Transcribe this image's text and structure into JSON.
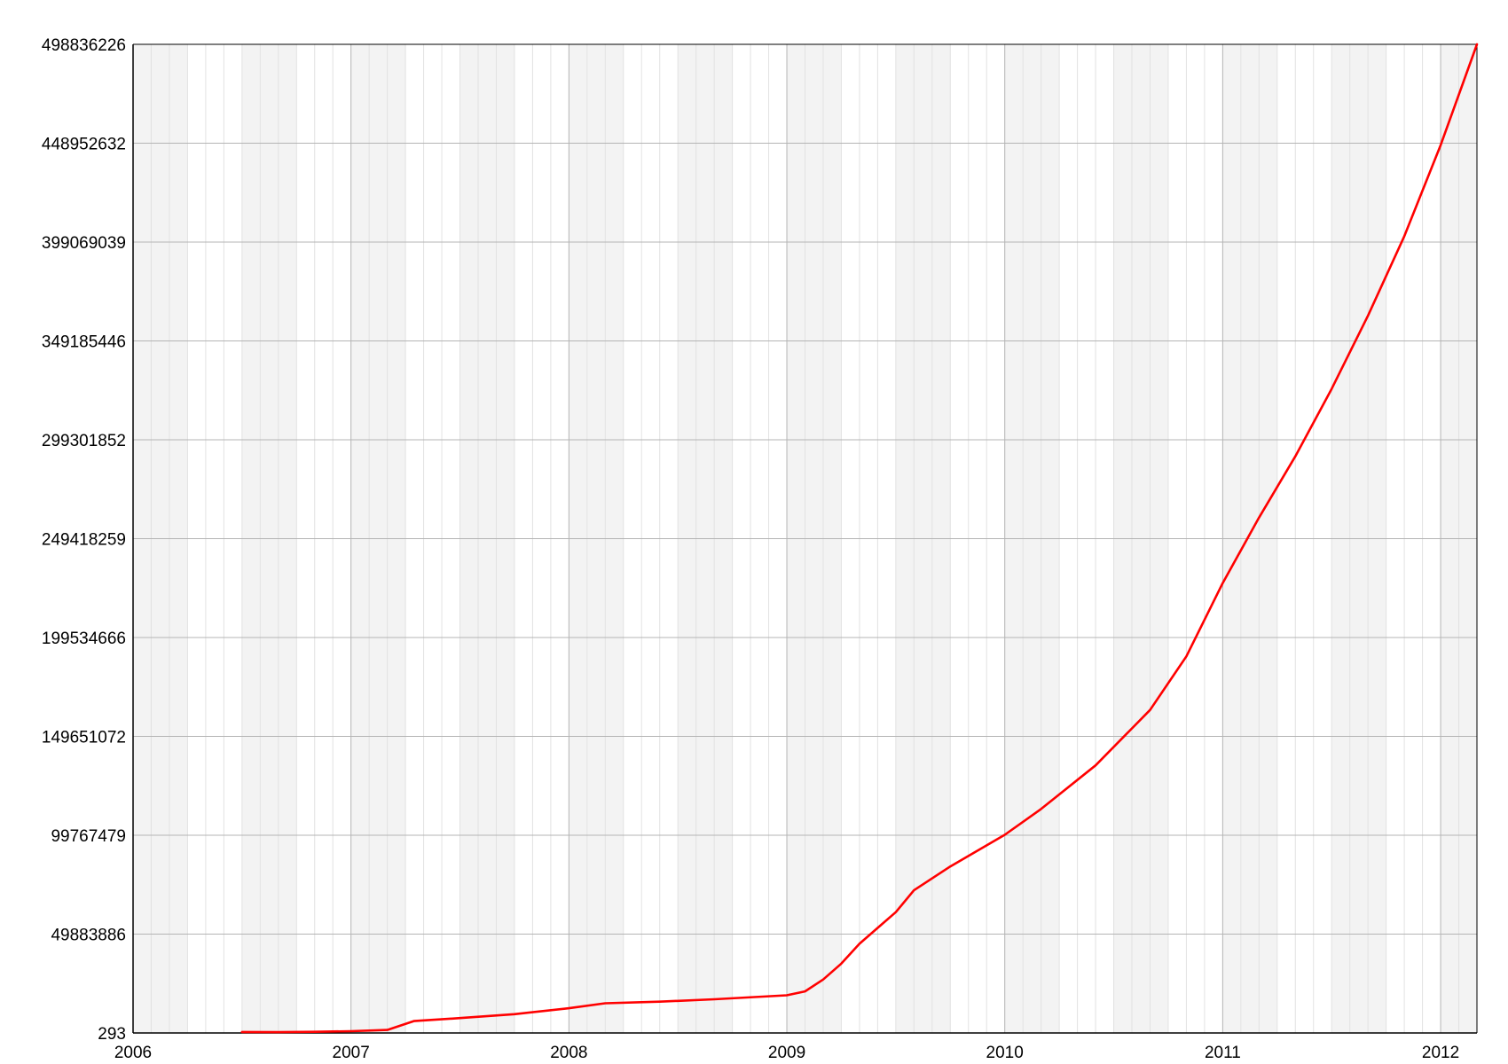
{
  "chart_data": {
    "type": "line",
    "title": "",
    "xlabel": "",
    "ylabel": "",
    "x_ticks": [
      "2006",
      "2007",
      "2008",
      "2009",
      "2010",
      "2011",
      "2012"
    ],
    "y_ticks": [
      "293",
      "49883886",
      "99767479",
      "149651072",
      "199534666",
      "249418259",
      "299301852",
      "349185446",
      "399069039",
      "448952632",
      "498836226"
    ],
    "xlim": [
      "2006-01-01",
      "2012-03-01"
    ],
    "ylim": [
      293,
      498836226
    ],
    "grid": true,
    "legend": "none",
    "colors": {
      "line": "#ff0000",
      "band": "#f3f3f3",
      "grid_major": "#b4b4b4",
      "grid_minor": "#e2e2e2",
      "axis": "#000000"
    },
    "series": [
      {
        "name": "",
        "x": [
          "2006-07-01",
          "2006-09-01",
          "2006-11-01",
          "2007-01-01",
          "2007-03-01",
          "2007-04-15",
          "2007-07-01",
          "2007-10-01",
          "2008-01-01",
          "2008-03-01",
          "2008-06-01",
          "2008-09-01",
          "2009-01-01",
          "2009-02-01",
          "2009-03-01",
          "2009-04-01",
          "2009-05-01",
          "2009-06-01",
          "2009-07-01",
          "2009-08-01",
          "2009-10-01",
          "2010-01-01",
          "2010-03-01",
          "2010-06-01",
          "2010-09-01",
          "2010-11-01",
          "2011-01-01",
          "2011-03-01",
          "2011-05-01",
          "2011-07-01",
          "2011-09-01",
          "2011-11-01",
          "2012-01-01",
          "2012-03-01"
        ],
        "y": [
          500000,
          400000,
          600000,
          900000,
          1500000,
          6000000,
          7500000,
          9500000,
          12500000,
          15000000,
          15800000,
          17000000,
          19000000,
          21000000,
          27000000,
          35000000,
          45000000,
          53000000,
          61000000,
          72000000,
          84000000,
          100000000,
          113000000,
          135000000,
          163000000,
          190000000,
          227000000,
          260000000,
          291000000,
          325000000,
          362000000,
          402000000,
          448000000,
          498836226
        ]
      }
    ]
  }
}
